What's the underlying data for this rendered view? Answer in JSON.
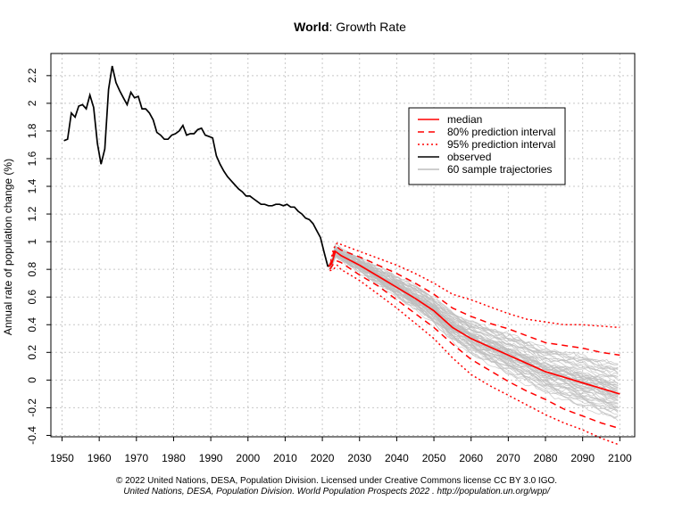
{
  "title_bold": "World",
  "title_rest": ": Growth Rate",
  "footer": {
    "line1": "© 2022 United Nations, DESA, Population Division. Licensed under Creative Commons license CC BY 3.0 IGO.",
    "line2": "United Nations, DESA, Population Division. World Population Prospects 2022 . http://population.un.org/wpp/"
  },
  "legend": [
    {
      "label": "median",
      "color": "#ff0000",
      "style": "solid"
    },
    {
      "label": "80% prediction interval",
      "color": "#ff0000",
      "style": "dashed"
    },
    {
      "label": "95% prediction interval",
      "color": "#ff0000",
      "style": "dotted"
    },
    {
      "label": "observed",
      "color": "#000000",
      "style": "solid"
    },
    {
      "label": "60 sample trajectories",
      "color": "#bdbdbd",
      "style": "solid"
    }
  ],
  "chart_data": {
    "type": "line",
    "title": "World: Growth Rate",
    "ylabel": "Annual rate of population change (%)",
    "xlabel": "",
    "xlim": [
      1947,
      2104
    ],
    "ylim": [
      -0.41,
      2.36
    ],
    "x_ticks": [
      1950,
      1960,
      1970,
      1980,
      1990,
      2000,
      2010,
      2020,
      2030,
      2040,
      2050,
      2060,
      2070,
      2080,
      2090,
      2100
    ],
    "y_ticks": [
      -0.4,
      -0.2,
      0,
      0.2,
      0.4,
      0.6,
      0.8,
      1,
      1.2,
      1.4,
      1.6,
      1.8,
      2,
      2.2
    ],
    "y_tick_labels": [
      "-0.4",
      "-0.2",
      "0",
      "0.2",
      "0.4",
      "0.6",
      "0.8",
      "1",
      "1.2",
      "1.4",
      "1.6",
      "1.8",
      "2",
      "2.2"
    ],
    "grid": true,
    "legend_position": "top-right",
    "series": [
      {
        "name": "observed",
        "color": "#000000",
        "style": "solid",
        "points": [
          [
            1950.5,
            1.73
          ],
          [
            1951.5,
            1.74
          ],
          [
            1952.5,
            1.93
          ],
          [
            1953.5,
            1.9
          ],
          [
            1954.5,
            1.98
          ],
          [
            1955.5,
            1.99
          ],
          [
            1956.5,
            1.96
          ],
          [
            1957.5,
            2.06
          ],
          [
            1958.5,
            1.97
          ],
          [
            1959.5,
            1.71
          ],
          [
            1960.5,
            1.56
          ],
          [
            1961.5,
            1.67
          ],
          [
            1962.5,
            2.1
          ],
          [
            1963.5,
            2.27
          ],
          [
            1964.5,
            2.15
          ],
          [
            1965.5,
            2.09
          ],
          [
            1966.5,
            2.04
          ],
          [
            1967.5,
            1.99
          ],
          [
            1968.5,
            2.08
          ],
          [
            1969.5,
            2.04
          ],
          [
            1970.5,
            2.05
          ],
          [
            1971.5,
            1.96
          ],
          [
            1972.5,
            1.96
          ],
          [
            1973.5,
            1.93
          ],
          [
            1974.5,
            1.88
          ],
          [
            1975.5,
            1.79
          ],
          [
            1976.5,
            1.77
          ],
          [
            1977.5,
            1.74
          ],
          [
            1978.5,
            1.74
          ],
          [
            1979.5,
            1.77
          ],
          [
            1980.5,
            1.78
          ],
          [
            1981.5,
            1.8
          ],
          [
            1982.5,
            1.84
          ],
          [
            1983.5,
            1.77
          ],
          [
            1984.5,
            1.78
          ],
          [
            1985.5,
            1.78
          ],
          [
            1986.5,
            1.81
          ],
          [
            1987.5,
            1.82
          ],
          [
            1988.5,
            1.77
          ],
          [
            1989.5,
            1.76
          ],
          [
            1990.5,
            1.75
          ],
          [
            1991.5,
            1.62
          ],
          [
            1992.5,
            1.56
          ],
          [
            1993.5,
            1.51
          ],
          [
            1994.5,
            1.47
          ],
          [
            1995.5,
            1.44
          ],
          [
            1996.5,
            1.41
          ],
          [
            1997.5,
            1.38
          ],
          [
            1998.5,
            1.36
          ],
          [
            1999.5,
            1.33
          ],
          [
            2000.5,
            1.33
          ],
          [
            2001.5,
            1.31
          ],
          [
            2002.5,
            1.29
          ],
          [
            2003.5,
            1.27
          ],
          [
            2004.5,
            1.27
          ],
          [
            2005.5,
            1.26
          ],
          [
            2006.5,
            1.26
          ],
          [
            2007.5,
            1.27
          ],
          [
            2008.5,
            1.27
          ],
          [
            2009.5,
            1.26
          ],
          [
            2010.5,
            1.27
          ],
          [
            2011.5,
            1.25
          ],
          [
            2012.5,
            1.25
          ],
          [
            2013.5,
            1.22
          ],
          [
            2014.5,
            1.2
          ],
          [
            2015.5,
            1.17
          ],
          [
            2016.5,
            1.16
          ],
          [
            2017.5,
            1.13
          ],
          [
            2018.5,
            1.08
          ],
          [
            2019.5,
            1.03
          ],
          [
            2020.5,
            0.92
          ],
          [
            2021.5,
            0.82
          ]
        ]
      },
      {
        "name": "median",
        "color": "#ff0000",
        "style": "solid",
        "points": [
          [
            2021.5,
            0.82
          ],
          [
            2022.5,
            0.84
          ],
          [
            2023.5,
            0.93
          ],
          [
            2024.5,
            0.91
          ],
          [
            2025,
            0.9
          ],
          [
            2030,
            0.83
          ],
          [
            2035,
            0.75
          ],
          [
            2040,
            0.67
          ],
          [
            2045,
            0.59
          ],
          [
            2050,
            0.5
          ],
          [
            2055,
            0.38
          ],
          [
            2060,
            0.3
          ],
          [
            2065,
            0.24
          ],
          [
            2070,
            0.18
          ],
          [
            2075,
            0.12
          ],
          [
            2080,
            0.06
          ],
          [
            2085,
            0.02
          ],
          [
            2090,
            -0.02
          ],
          [
            2095,
            -0.06
          ],
          [
            2100,
            -0.1
          ]
        ]
      },
      {
        "name": "80% prediction interval",
        "color": "#ff0000",
        "style": "dashed",
        "upper": [
          [
            2022,
            0.82
          ],
          [
            2023,
            0.92
          ],
          [
            2024,
            0.96
          ],
          [
            2025,
            0.94
          ],
          [
            2030,
            0.89
          ],
          [
            2035,
            0.83
          ],
          [
            2040,
            0.77
          ],
          [
            2045,
            0.7
          ],
          [
            2050,
            0.62
          ],
          [
            2055,
            0.52
          ],
          [
            2060,
            0.46
          ],
          [
            2065,
            0.41
          ],
          [
            2070,
            0.37
          ],
          [
            2075,
            0.32
          ],
          [
            2080,
            0.27
          ],
          [
            2085,
            0.25
          ],
          [
            2090,
            0.23
          ],
          [
            2095,
            0.2
          ],
          [
            2100,
            0.18
          ]
        ],
        "lower": [
          [
            2022,
            0.8
          ],
          [
            2023,
            0.84
          ],
          [
            2024,
            0.86
          ],
          [
            2025,
            0.85
          ],
          [
            2030,
            0.76
          ],
          [
            2035,
            0.68
          ],
          [
            2040,
            0.58
          ],
          [
            2045,
            0.48
          ],
          [
            2050,
            0.38
          ],
          [
            2055,
            0.26
          ],
          [
            2060,
            0.15
          ],
          [
            2065,
            0.07
          ],
          [
            2070,
            -0.01
          ],
          [
            2075,
            -0.08
          ],
          [
            2080,
            -0.14
          ],
          [
            2085,
            -0.21
          ],
          [
            2090,
            -0.26
          ],
          [
            2095,
            -0.31
          ],
          [
            2100,
            -0.35
          ]
        ]
      },
      {
        "name": "95% prediction interval",
        "color": "#ff0000",
        "style": "dotted",
        "upper": [
          [
            2022,
            0.83
          ],
          [
            2023,
            0.95
          ],
          [
            2024,
            0.99
          ],
          [
            2025,
            0.98
          ],
          [
            2030,
            0.93
          ],
          [
            2035,
            0.88
          ],
          [
            2040,
            0.83
          ],
          [
            2045,
            0.77
          ],
          [
            2050,
            0.7
          ],
          [
            2055,
            0.62
          ],
          [
            2060,
            0.58
          ],
          [
            2065,
            0.53
          ],
          [
            2070,
            0.48
          ],
          [
            2075,
            0.44
          ],
          [
            2080,
            0.42
          ],
          [
            2085,
            0.4
          ],
          [
            2090,
            0.4
          ],
          [
            2095,
            0.39
          ],
          [
            2100,
            0.38
          ]
        ],
        "lower": [
          [
            2022,
            0.79
          ],
          [
            2023,
            0.8
          ],
          [
            2024,
            0.83
          ],
          [
            2025,
            0.8
          ],
          [
            2030,
            0.72
          ],
          [
            2035,
            0.62
          ],
          [
            2040,
            0.52
          ],
          [
            2045,
            0.41
          ],
          [
            2050,
            0.3
          ],
          [
            2055,
            0.16
          ],
          [
            2060,
            0.04
          ],
          [
            2065,
            -0.04
          ],
          [
            2070,
            -0.11
          ],
          [
            2075,
            -0.18
          ],
          [
            2080,
            -0.25
          ],
          [
            2085,
            -0.31
          ],
          [
            2090,
            -0.36
          ],
          [
            2095,
            -0.42
          ],
          [
            2100,
            -0.47
          ]
        ]
      },
      {
        "name": "60 sample trajectories",
        "color": "#bdbdbd",
        "style": "solid",
        "count": 60
      }
    ]
  }
}
